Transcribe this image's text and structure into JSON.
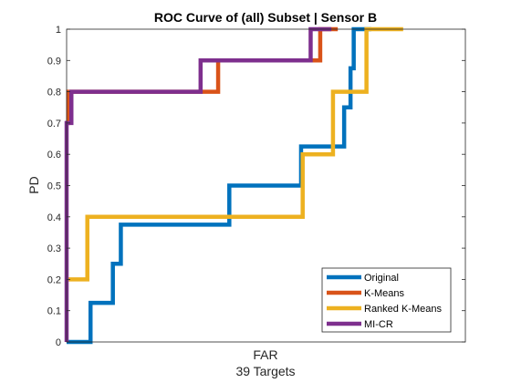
{
  "chart_data": {
    "type": "line",
    "title": "ROC Curve of (all) Subset | Sensor B",
    "xlabel": "FAR",
    "xlabel_sub": "39 Targets",
    "ylabel": "PD",
    "xlim": [
      0,
      1
    ],
    "ylim": [
      0,
      1
    ],
    "yticks": [
      "0",
      "0.1",
      "0.2",
      "0.3",
      "0.4",
      "0.5",
      "0.6",
      "0.7",
      "0.8",
      "0.9",
      "1"
    ],
    "grid": false,
    "legend_position": "bottom-right",
    "step": true,
    "series": [
      {
        "name": "Original",
        "color": "#0072BD",
        "x": [
          0,
          0.06,
          0.06,
          0.116,
          0.116,
          0.136,
          0.136,
          0.408,
          0.408,
          0.588,
          0.588,
          0.6,
          0.6,
          0.696,
          0.696,
          0.712,
          0.712,
          0.72,
          0.72,
          0.764
        ],
        "y": [
          0,
          0,
          0.125,
          0.125,
          0.25,
          0.25,
          0.375,
          0.375,
          0.5,
          0.5,
          0.625,
          0.625,
          0.625,
          0.625,
          0.75,
          0.75,
          0.875,
          0.875,
          1,
          1
        ]
      },
      {
        "name": "K-Means",
        "color": "#D95319",
        "x": [
          0,
          0.004,
          0.004,
          0.38,
          0.38,
          0.636,
          0.636,
          0.68
        ],
        "y": [
          0.7,
          0.7,
          0.8,
          0.8,
          0.9,
          0.9,
          1,
          1
        ]
      },
      {
        "name": "Ranked K-Means",
        "color": "#EDB120",
        "x": [
          0,
          0.052,
          0.052,
          0.592,
          0.592,
          0.668,
          0.668,
          0.752,
          0.752,
          0.844
        ],
        "y": [
          0.2,
          0.2,
          0.4,
          0.4,
          0.6,
          0.6,
          0.8,
          0.8,
          1,
          1
        ]
      },
      {
        "name": "MI-CR",
        "color": "#7E2F8E",
        "x": [
          0,
          0,
          0.012,
          0.012,
          0.336,
          0.336,
          0.612,
          0.612,
          0.664
        ],
        "y": [
          0,
          0.7,
          0.7,
          0.8,
          0.8,
          0.9,
          0.9,
          1,
          1
        ]
      }
    ]
  }
}
